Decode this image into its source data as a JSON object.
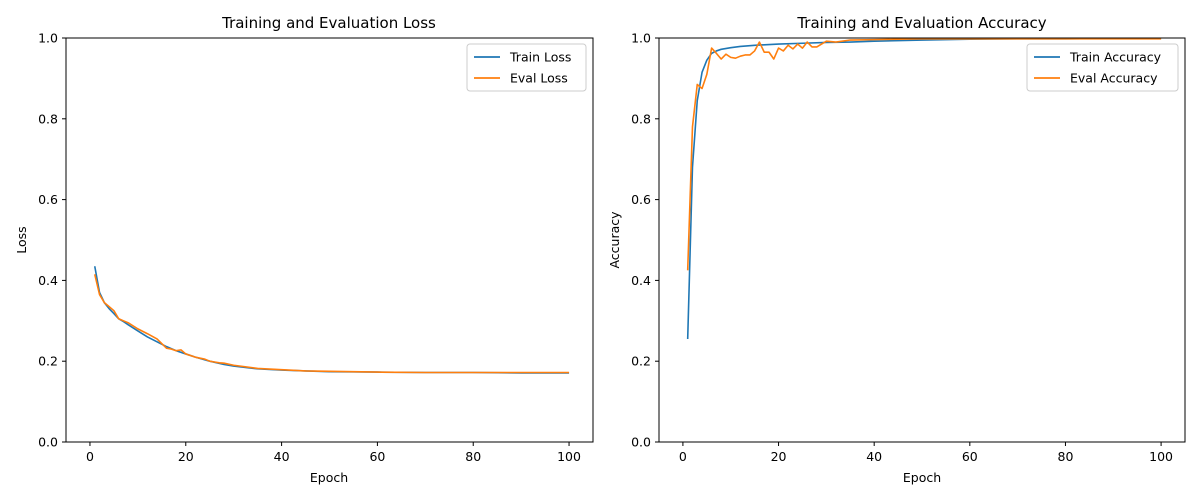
{
  "chart_data": [
    {
      "type": "line",
      "title": "Training and Evaluation Loss",
      "xlabel": "Epoch",
      "ylabel": "Loss",
      "xlim": [
        -5,
        105
      ],
      "ylim": [
        0,
        1
      ],
      "xticks": [
        0,
        20,
        40,
        60,
        80,
        100
      ],
      "yticks": [
        0.0,
        0.2,
        0.4,
        0.6,
        0.8,
        1.0
      ],
      "grid": false,
      "legend_position": "top-right",
      "series": [
        {
          "name": "Train Loss",
          "color": "#1f77b4",
          "x": [
            1,
            2,
            3,
            4,
            5,
            6,
            7,
            8,
            10,
            12,
            14,
            16,
            18,
            20,
            22,
            25,
            28,
            30,
            35,
            40,
            45,
            50,
            60,
            70,
            80,
            90,
            100
          ],
          "y": [
            0.435,
            0.37,
            0.345,
            0.33,
            0.318,
            0.305,
            0.298,
            0.29,
            0.275,
            0.26,
            0.248,
            0.236,
            0.226,
            0.218,
            0.21,
            0.2,
            0.192,
            0.188,
            0.181,
            0.178,
            0.176,
            0.174,
            0.173,
            0.172,
            0.172,
            0.171,
            0.171
          ]
        },
        {
          "name": "Eval Loss",
          "color": "#ff7f0e",
          "x": [
            1,
            2,
            3,
            4,
            5,
            6,
            7,
            8,
            10,
            12,
            14,
            16,
            17,
            18,
            19,
            20,
            22,
            24,
            25,
            26,
            27,
            28,
            30,
            35,
            40,
            45,
            50,
            60,
            70,
            80,
            90,
            100
          ],
          "y": [
            0.415,
            0.365,
            0.345,
            0.335,
            0.325,
            0.305,
            0.3,
            0.295,
            0.28,
            0.268,
            0.255,
            0.232,
            0.23,
            0.226,
            0.228,
            0.218,
            0.21,
            0.205,
            0.2,
            0.198,
            0.196,
            0.195,
            0.19,
            0.182,
            0.179,
            0.176,
            0.175,
            0.173,
            0.172,
            0.172,
            0.172,
            0.172
          ]
        }
      ]
    },
    {
      "type": "line",
      "title": "Training and Evaluation Accuracy",
      "xlabel": "Epoch",
      "ylabel": "Accuracy",
      "xlim": [
        -5,
        105
      ],
      "ylim": [
        0,
        1
      ],
      "xticks": [
        0,
        20,
        40,
        60,
        80,
        100
      ],
      "yticks": [
        0.0,
        0.2,
        0.4,
        0.6,
        0.8,
        1.0
      ],
      "grid": false,
      "legend_position": "top-right",
      "series": [
        {
          "name": "Train Accuracy",
          "color": "#1f77b4",
          "x": [
            1,
            2,
            3,
            4,
            5,
            6,
            7,
            8,
            10,
            12,
            15,
            20,
            25,
            30,
            35,
            40,
            50,
            60,
            70,
            80,
            90,
            100
          ],
          "y": [
            0.255,
            0.68,
            0.845,
            0.915,
            0.945,
            0.962,
            0.968,
            0.972,
            0.976,
            0.979,
            0.982,
            0.985,
            0.987,
            0.989,
            0.99,
            0.992,
            0.995,
            0.997,
            0.998,
            0.998,
            0.999,
            0.999
          ]
        },
        {
          "name": "Eval Accuracy",
          "color": "#ff7f0e",
          "x": [
            1,
            2,
            3,
            4,
            5,
            6,
            7,
            8,
            9,
            10,
            11,
            12,
            13,
            14,
            15,
            16,
            17,
            18,
            19,
            20,
            21,
            22,
            23,
            24,
            25,
            26,
            27,
            28,
            29,
            30,
            32,
            35,
            40,
            45,
            50,
            60,
            70,
            80,
            90,
            100
          ],
          "y": [
            0.425,
            0.78,
            0.885,
            0.875,
            0.91,
            0.975,
            0.962,
            0.948,
            0.96,
            0.952,
            0.95,
            0.955,
            0.958,
            0.958,
            0.968,
            0.99,
            0.965,
            0.965,
            0.948,
            0.975,
            0.968,
            0.982,
            0.973,
            0.985,
            0.975,
            0.99,
            0.978,
            0.978,
            0.985,
            0.992,
            0.99,
            0.995,
            0.996,
            0.997,
            0.998,
            0.998,
            0.998,
            0.998,
            0.998,
            0.998
          ]
        }
      ]
    }
  ]
}
